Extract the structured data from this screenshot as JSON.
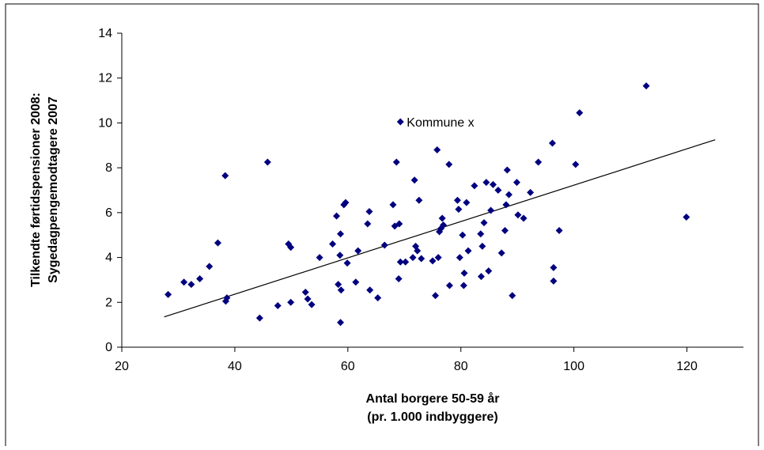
{
  "chart_data": {
    "type": "scatter",
    "xlabel_lines": [
      "Antal borgere 50-59 år",
      "(pr. 1.000 indbyggere)"
    ],
    "ylabel_lines": [
      "Tilkendte førtidspensioner 2008:",
      "Sygedagpengemodtagere 2007"
    ],
    "xlim": [
      20,
      130
    ],
    "ylim": [
      0,
      14
    ],
    "xticks": [
      20,
      40,
      60,
      80,
      100,
      120
    ],
    "yticks": [
      0,
      2,
      4,
      6,
      8,
      10,
      12,
      14
    ],
    "marker_color": "#00007f",
    "grid": false,
    "legend": "none",
    "trendline": {
      "x": [
        27.5,
        125
      ],
      "y": [
        1.35,
        9.25
      ]
    },
    "annotation": {
      "text": "Kommune x",
      "x": 69.3,
      "y": 10.05
    },
    "points": [
      [
        28.2,
        2.35
      ],
      [
        31.0,
        2.9
      ],
      [
        32.3,
        2.8
      ],
      [
        33.8,
        3.05
      ],
      [
        35.5,
        3.6
      ],
      [
        37.0,
        4.65
      ],
      [
        38.3,
        7.65
      ],
      [
        38.4,
        2.05
      ],
      [
        38.6,
        2.2
      ],
      [
        44.4,
        1.3
      ],
      [
        45.8,
        8.25
      ],
      [
        47.6,
        1.85
      ],
      [
        49.5,
        4.6
      ],
      [
        49.9,
        4.45
      ],
      [
        49.9,
        2.0
      ],
      [
        52.5,
        2.45
      ],
      [
        52.9,
        2.15
      ],
      [
        53.6,
        1.9
      ],
      [
        55.0,
        4.0
      ],
      [
        57.3,
        4.6
      ],
      [
        58.0,
        5.85
      ],
      [
        58.3,
        2.8
      ],
      [
        58.6,
        4.1
      ],
      [
        58.7,
        5.05
      ],
      [
        58.8,
        2.55
      ],
      [
        58.7,
        1.1
      ],
      [
        59.3,
        6.35
      ],
      [
        59.6,
        6.45
      ],
      [
        59.9,
        3.75
      ],
      [
        61.4,
        2.9
      ],
      [
        61.8,
        4.3
      ],
      [
        63.5,
        5.5
      ],
      [
        63.8,
        6.05
      ],
      [
        63.9,
        2.55
      ],
      [
        65.3,
        2.2
      ],
      [
        66.5,
        4.55
      ],
      [
        68.0,
        6.35
      ],
      [
        68.3,
        5.4
      ],
      [
        68.6,
        8.25
      ],
      [
        69.1,
        5.5
      ],
      [
        69.3,
        10.05
      ],
      [
        69.0,
        3.05
      ],
      [
        69.3,
        3.8
      ],
      [
        70.2,
        3.8
      ],
      [
        71.5,
        4.0
      ],
      [
        71.8,
        7.45
      ],
      [
        72.0,
        4.5
      ],
      [
        72.3,
        4.3
      ],
      [
        72.6,
        6.55
      ],
      [
        73.0,
        3.95
      ],
      [
        75.0,
        3.85
      ],
      [
        75.5,
        2.3
      ],
      [
        75.8,
        8.8
      ],
      [
        76.0,
        4.0
      ],
      [
        76.2,
        5.15
      ],
      [
        76.5,
        5.3
      ],
      [
        76.7,
        5.75
      ],
      [
        76.9,
        5.45
      ],
      [
        77.9,
        8.15
      ],
      [
        78.0,
        2.75
      ],
      [
        79.4,
        6.55
      ],
      [
        79.6,
        6.15
      ],
      [
        79.8,
        4.0
      ],
      [
        80.3,
        5.0
      ],
      [
        80.5,
        2.75
      ],
      [
        80.6,
        3.3
      ],
      [
        81.0,
        6.45
      ],
      [
        81.3,
        4.3
      ],
      [
        82.4,
        7.2
      ],
      [
        83.5,
        5.05
      ],
      [
        83.6,
        3.15
      ],
      [
        83.8,
        4.5
      ],
      [
        84.1,
        5.55
      ],
      [
        84.5,
        7.35
      ],
      [
        84.9,
        3.4
      ],
      [
        85.3,
        6.1
      ],
      [
        85.7,
        7.25
      ],
      [
        86.6,
        7.0
      ],
      [
        87.2,
        4.2
      ],
      [
        87.8,
        5.2
      ],
      [
        88.0,
        6.35
      ],
      [
        88.2,
        7.9
      ],
      [
        88.5,
        6.8
      ],
      [
        89.1,
        2.3
      ],
      [
        89.9,
        7.35
      ],
      [
        90.1,
        5.9
      ],
      [
        91.1,
        5.75
      ],
      [
        92.3,
        6.9
      ],
      [
        93.7,
        8.25
      ],
      [
        96.2,
        9.1
      ],
      [
        96.4,
        3.55
      ],
      [
        96.4,
        2.95
      ],
      [
        97.4,
        5.2
      ],
      [
        100.3,
        8.15
      ],
      [
        101.0,
        10.45
      ],
      [
        112.8,
        11.65
      ],
      [
        119.9,
        5.8
      ]
    ]
  }
}
